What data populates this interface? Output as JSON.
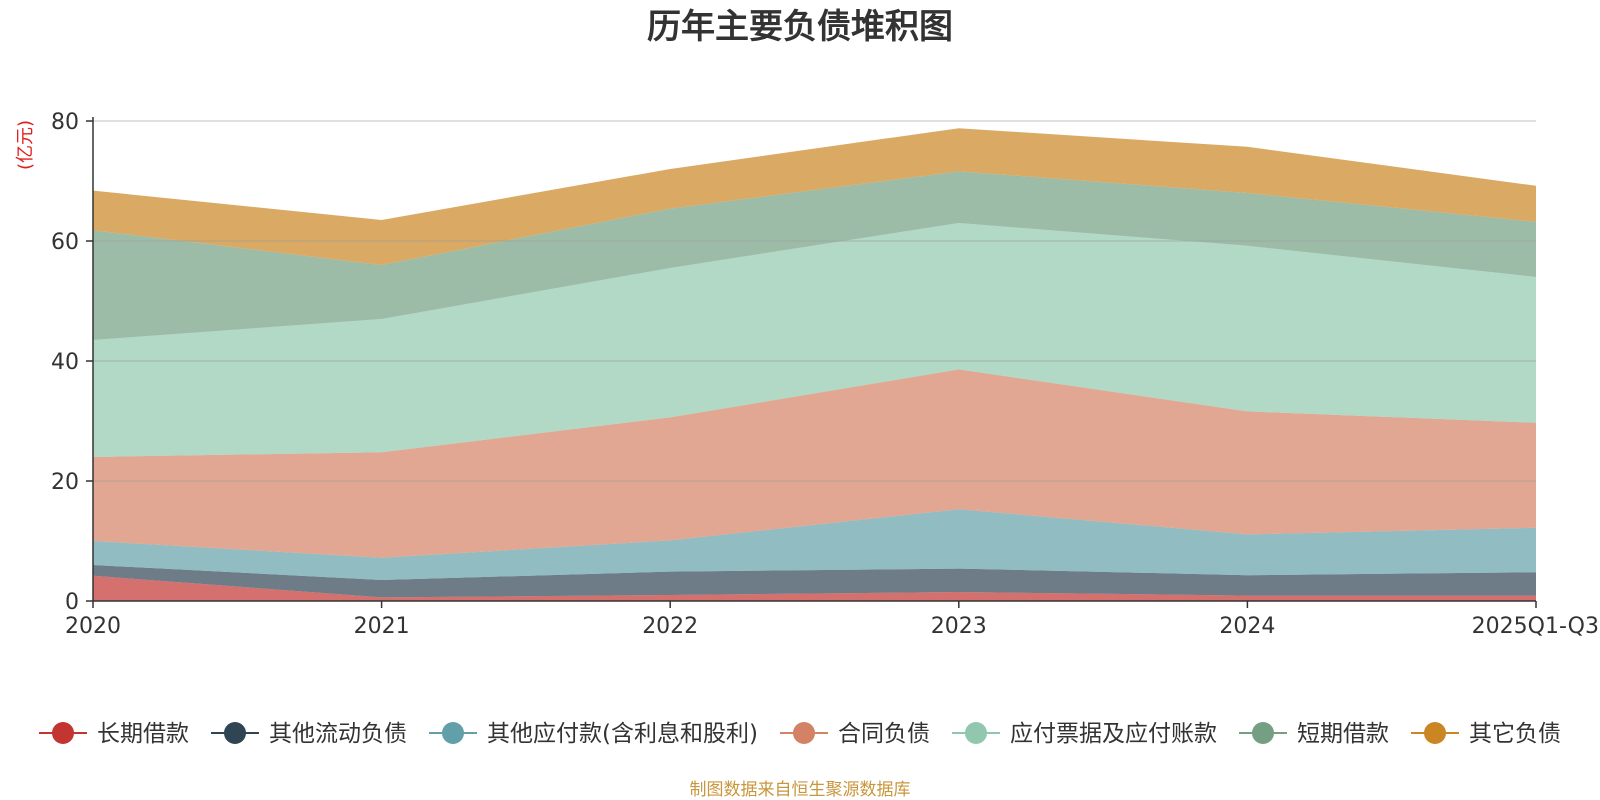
{
  "chart_data": {
    "type": "area",
    "stacked": true,
    "title": "历年主要负债堆积图",
    "ylabel": "(亿元)",
    "xlabel": "",
    "categories": [
      "2020",
      "2021",
      "2022",
      "2023",
      "2024",
      "2025Q1-Q3"
    ],
    "ylim": [
      0,
      80
    ],
    "yticks": [
      0,
      20,
      40,
      60,
      80
    ],
    "grid": true,
    "legend_position": "bottom",
    "series": [
      {
        "name": "长期借款",
        "color": "#c23531",
        "values": [
          4.2,
          0.6,
          1.0,
          1.5,
          0.9,
          0.9
        ]
      },
      {
        "name": "其他流动负债",
        "color": "#2f4554",
        "values": [
          1.8,
          2.9,
          3.9,
          3.9,
          3.4,
          3.9
        ]
      },
      {
        "name": "其他应付款(含利息和股利)",
        "color": "#61a0a8",
        "values": [
          4.0,
          3.7,
          5.2,
          9.9,
          6.8,
          7.4
        ]
      },
      {
        "name": "合同负债",
        "color": "#d48265",
        "values": [
          14.0,
          17.6,
          20.5,
          23.3,
          20.5,
          17.5
        ]
      },
      {
        "name": "应付票据及应付账款",
        "color": "#91c7ae",
        "values": [
          19.5,
          22.2,
          24.9,
          24.4,
          27.6,
          24.3
        ]
      },
      {
        "name": "短期借款",
        "color": "#749f83",
        "values": [
          18.3,
          9.0,
          9.9,
          8.6,
          8.8,
          9.2
        ]
      },
      {
        "name": "其它负债",
        "color": "#ca8622",
        "values": [
          6.6,
          7.5,
          6.6,
          7.2,
          7.7,
          6.0
        ]
      }
    ],
    "source_note": "制图数据来自恒生聚源数据库"
  }
}
